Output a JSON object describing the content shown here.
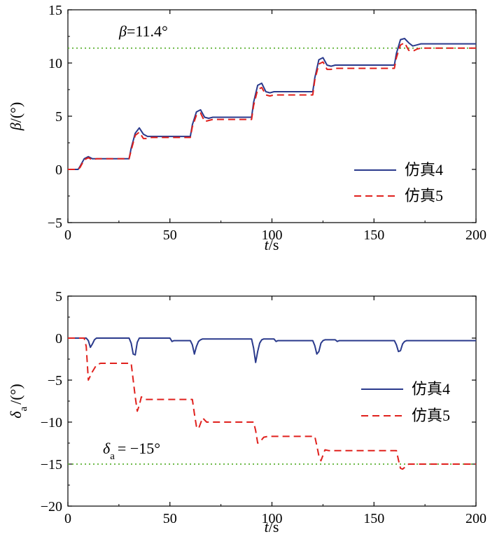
{
  "chart_data": [
    {
      "type": "line",
      "xlabel": {
        "var": "t",
        "unit": "/s"
      },
      "ylabel": {
        "var": "β",
        "unit": "/(°)"
      },
      "xlim": [
        0,
        200
      ],
      "ylim": [
        -5,
        15
      ],
      "xticks": [
        0,
        50,
        100,
        150,
        200
      ],
      "yticks": [
        -5,
        0,
        5,
        10,
        15
      ],
      "legend_position": "bottom-right",
      "reference_line": {
        "y": 11.4,
        "label_var": "β",
        "label_value": "=11.4°",
        "color": "#5ab030",
        "style": "dotted"
      },
      "series": [
        {
          "name": "仿真4",
          "color": "#2a3a8c",
          "style": "solid",
          "x": [
            0,
            5,
            6,
            8,
            10,
            12,
            14,
            16,
            30,
            31,
            33,
            35,
            37,
            39,
            41,
            60,
            61,
            63,
            65,
            67,
            69,
            71,
            90,
            91,
            93,
            95,
            97,
            99,
            101,
            120,
            121,
            123,
            125,
            127,
            129,
            131,
            160,
            161,
            163,
            165,
            167,
            169,
            171,
            173,
            175,
            200
          ],
          "y": [
            0,
            0,
            0.3,
            1.0,
            1.2,
            1.0,
            1.0,
            1.0,
            1.0,
            2.0,
            3.4,
            3.9,
            3.3,
            3.1,
            3.1,
            3.1,
            4.2,
            5.4,
            5.6,
            4.9,
            4.8,
            4.9,
            4.9,
            6.3,
            7.9,
            8.1,
            7.3,
            7.2,
            7.3,
            7.3,
            8.6,
            10.3,
            10.5,
            9.8,
            9.7,
            9.8,
            9.8,
            10.9,
            12.2,
            12.3,
            11.9,
            11.6,
            11.7,
            11.8,
            11.8,
            11.8
          ]
        },
        {
          "name": "仿真5",
          "color": "#e0211d",
          "style": "dashed",
          "x": [
            0,
            5,
            6,
            8,
            10,
            12,
            14,
            16,
            30,
            31,
            33,
            35,
            37,
            39,
            41,
            60,
            61,
            63,
            65,
            67,
            69,
            71,
            90,
            91,
            93,
            95,
            97,
            99,
            101,
            120,
            121,
            123,
            125,
            127,
            129,
            131,
            160,
            161,
            163,
            165,
            167,
            169,
            171,
            173,
            175,
            200
          ],
          "y": [
            0,
            0,
            0.2,
            0.9,
            1.1,
            0.9,
            1.0,
            1.0,
            1.0,
            1.8,
            3.2,
            3.5,
            2.9,
            2.9,
            3.0,
            3.0,
            4.0,
            5.1,
            5.3,
            4.5,
            4.6,
            4.7,
            4.7,
            6.0,
            7.5,
            7.7,
            7.0,
            6.9,
            7.0,
            7.0,
            8.4,
            9.9,
            10.1,
            9.4,
            9.4,
            9.5,
            9.5,
            10.5,
            11.7,
            11.9,
            11.2,
            11.1,
            11.3,
            11.4,
            11.4,
            11.4
          ]
        }
      ]
    },
    {
      "type": "line",
      "xlabel": {
        "var": "t",
        "unit": "/s"
      },
      "ylabel": {
        "var": "δ",
        "sub": "a",
        "unit": "/(°)"
      },
      "xlim": [
        0,
        200
      ],
      "ylim": [
        -20,
        5
      ],
      "xticks": [
        0,
        50,
        100,
        150,
        200
      ],
      "yticks": [
        -20,
        -15,
        -10,
        -5,
        0,
        5
      ],
      "legend_position": "right",
      "reference_line": {
        "y": -15,
        "label_var": "δ",
        "label_sub": "a",
        "label_value": "= −15°",
        "color": "#5ab030",
        "style": "dotted"
      },
      "series": [
        {
          "name": "仿真4",
          "color": "#2a3a8c",
          "style": "solid",
          "x": [
            0,
            9,
            10,
            11,
            12,
            13,
            14,
            30,
            31,
            32,
            33,
            34,
            35,
            50,
            51,
            52,
            60,
            61,
            62,
            63,
            64,
            65,
            66,
            90,
            91,
            92,
            93,
            94,
            95,
            96,
            101,
            102,
            103,
            120,
            121,
            122,
            123,
            124,
            125,
            126,
            131,
            132,
            133,
            160,
            161,
            162,
            163,
            164,
            165,
            166,
            200
          ],
          "y": [
            0,
            0,
            -0.3,
            -1.1,
            -0.7,
            -0.2,
            0,
            0,
            -0.6,
            -1.9,
            -2.0,
            -0.5,
            0,
            0,
            -0.4,
            -0.3,
            -0.3,
            -0.8,
            -1.9,
            -1.0,
            -0.4,
            -0.2,
            -0.1,
            -0.1,
            -1.2,
            -2.9,
            -1.6,
            -0.6,
            -0.2,
            -0.1,
            -0.1,
            -0.4,
            -0.3,
            -0.3,
            -0.9,
            -1.9,
            -1.6,
            -0.6,
            -0.3,
            -0.2,
            -0.2,
            -0.4,
            -0.3,
            -0.3,
            -0.8,
            -1.6,
            -1.5,
            -0.7,
            -0.4,
            -0.3,
            -0.3
          ]
        },
        {
          "name": "仿真5",
          "color": "#e0211d",
          "style": "dashed",
          "x": [
            0,
            8,
            9,
            10,
            12,
            14,
            16,
            31,
            32,
            33,
            34,
            35,
            36,
            38,
            40,
            61,
            62,
            63,
            64,
            66,
            68,
            70,
            91,
            92,
            93,
            94,
            96,
            98,
            100,
            121,
            122,
            123,
            124,
            126,
            128,
            130,
            161,
            162,
            163,
            164,
            165,
            167,
            169,
            172,
            175,
            200
          ],
          "y": [
            0,
            0,
            -1.0,
            -5.0,
            -4.0,
            -3.2,
            -3.0,
            -3.0,
            -5.0,
            -7.0,
            -8.7,
            -8.0,
            -7.0,
            -7.3,
            -7.3,
            -7.3,
            -9.0,
            -10.5,
            -10.8,
            -9.5,
            -10.0,
            -10.0,
            -10.0,
            -11.0,
            -12.5,
            -12.4,
            -11.8,
            -11.7,
            -11.7,
            -11.7,
            -12.8,
            -14.0,
            -14.6,
            -13.3,
            -13.4,
            -13.4,
            -13.4,
            -14.5,
            -15.5,
            -15.6,
            -15.4,
            -15.0,
            -15.0,
            -15.0,
            -15.0,
            -15.0
          ]
        }
      ]
    }
  ]
}
